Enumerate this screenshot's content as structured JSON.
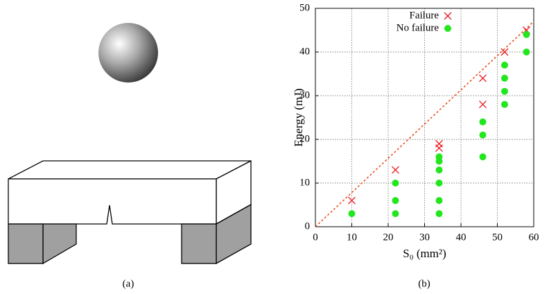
{
  "captions": [
    "(a)",
    "(b)"
  ],
  "chart_data": {
    "type": "scatter",
    "xlabel": "S₀ (mm²)",
    "ylabel": "Energy (mJ)",
    "xlim": [
      0,
      60
    ],
    "xticks": [
      0,
      10,
      20,
      30,
      40,
      50,
      60
    ],
    "ylim": [
      0,
      50
    ],
    "yticks": [
      0,
      10,
      20,
      30,
      40,
      50
    ],
    "grid": true,
    "legend": "top-left",
    "series": [
      {
        "name": "Failure",
        "marker": "x",
        "color": "#e8141c",
        "x": [
          10,
          22,
          34,
          34,
          46,
          46,
          52,
          58
        ],
        "values": [
          6,
          13,
          19,
          18,
          34,
          28,
          40,
          45
        ]
      },
      {
        "name": "No failure",
        "marker": "dot",
        "color": "#22e61e",
        "x": [
          10,
          22,
          22,
          22,
          34,
          34,
          34,
          34,
          34,
          34,
          46,
          46,
          46,
          52,
          52,
          52,
          52,
          58,
          58
        ],
        "values": [
          3,
          10,
          6,
          3,
          16,
          15,
          13,
          10,
          6,
          3,
          24,
          21,
          16,
          37,
          34,
          31,
          28,
          44,
          40
        ]
      }
    ],
    "reference_line": {
      "x": [
        0,
        60
      ],
      "values": [
        0,
        47
      ],
      "color": "#e8501c"
    }
  }
}
